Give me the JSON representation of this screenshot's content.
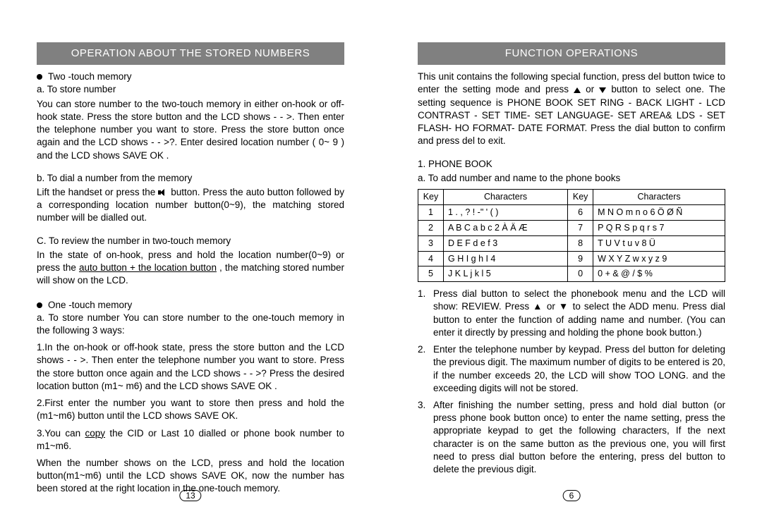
{
  "left": {
    "header": "OPERATION ABOUT THE STORED NUMBERS",
    "twoTouch": {
      "title": "Two -touch memory",
      "a_label": "a. To store number",
      "a_body": "You can store number to the two-touch memory in either on-hook or off-hook state. Press the store button and the LCD shows  - - >.   Then enter the telephone number you want to store. Press the store button once again and the LCD shows  - - >?. Enter desired location number ( 0~ 9 ) and the LCD shows  SAVE OK .",
      "b_label": "b. To dial a number from the memory",
      "b_body_1": "Lift the handset or press the ",
      "b_body_2": " button. Press the auto button followed by a corresponding location number button(0~9), the matching stored number will be dialled out.",
      "c_label": "C. To review the number in two-touch memory",
      "c_body_1": "In the state of on-hook, press and hold the location number(0~9) or press the ",
      "c_body_underline": "auto button + the location button",
      "c_body_2": ", the matching stored number will show on the LCD."
    },
    "oneTouch": {
      "title": "One -touch memory",
      "a_body": "a. To store number You can store number to the one-touch memory in the following 3 ways:",
      "p1": "1.In the on-hook or off-hook state, press the store button and the LCD shows  - - >.  Then enter the telephone number you want to store. Press the store button once again and the LCD shows  - - >? Press the desired location button (m1~ m6) and the LCD shows  SAVE OK .",
      "p2": "2.First enter the number you want to store then press and hold the (m1~m6) button until the LCD shows SAVE OK.",
      "p3_a": "3.You can ",
      "p3_u": "copy",
      "p3_b": " the CID or Last 10 dialled or phone book number to m1~m6.",
      "p3_c": "When the number shows on the LCD, press and hold the location button(m1~m6) until the LCD shows SAVE OK, now the number has been stored at the right location in the one-touch memory."
    },
    "page_num": "13"
  },
  "right": {
    "header": "FUNCTION OPERATIONS",
    "intro_a": "This unit contains the following special function, press del button twice to enter the setting mode and press",
    "intro_b": "or",
    "intro_c": "button to select one. The setting sequence is PHONE BOOK SET RING - BACK LIGHT - LCD CONTRAST - SET TIME- SET LANGUAGE- SET AREA& LDS - SET FLASH- HO FORMAT- DATE FORMAT. Press the dial button to confirm and press del to exit.",
    "phonebook_title": "1. PHONE BOOK",
    "phonebook_a": "a. To add number and name to the phone books",
    "table": {
      "head": [
        "Key",
        "Characters",
        "Key",
        "Characters"
      ],
      "rows": [
        [
          "1",
          "1 . , ? ! -\" ' ( )",
          "6",
          "M N O m n o 6 Ö Ø Ñ"
        ],
        [
          "2",
          "A B C a b c 2 À Ä Æ",
          "7",
          "P Q R S p q r s 7"
        ],
        [
          "3",
          "D E F d e f 3",
          "8",
          "T U V t u v 8 Ü"
        ],
        [
          "4",
          "G H I g h I 4",
          "9",
          "W X Y Z w x y z 9"
        ],
        [
          "5",
          "J K L j k l 5",
          "0",
          "0 + & @ / $ %"
        ]
      ]
    },
    "steps": [
      "Press dial button to select the phonebook menu and the LCD will show: REVIEW. Press ▲ or ▼ to select the ADD menu. Press dial button to enter the function of adding name and number. (You can enter it directly by pressing and holding the phone book button.)",
      "Enter the telephone number by keypad. Press del button for deleting the previous digit. The maximum number of digits to be entered is 20, if the number exceeds 20, the LCD will show TOO LONG. and the exceeding digits will not be stored.",
      "After finishing the number setting, press and hold dial button (or press phone book button once) to enter the name setting, press the appropriate keypad to get the following characters, If the next character is on the same button as the previous one, you will first need to press dial button before the entering, press del button to delete the previous digit."
    ],
    "page_num": "6"
  }
}
